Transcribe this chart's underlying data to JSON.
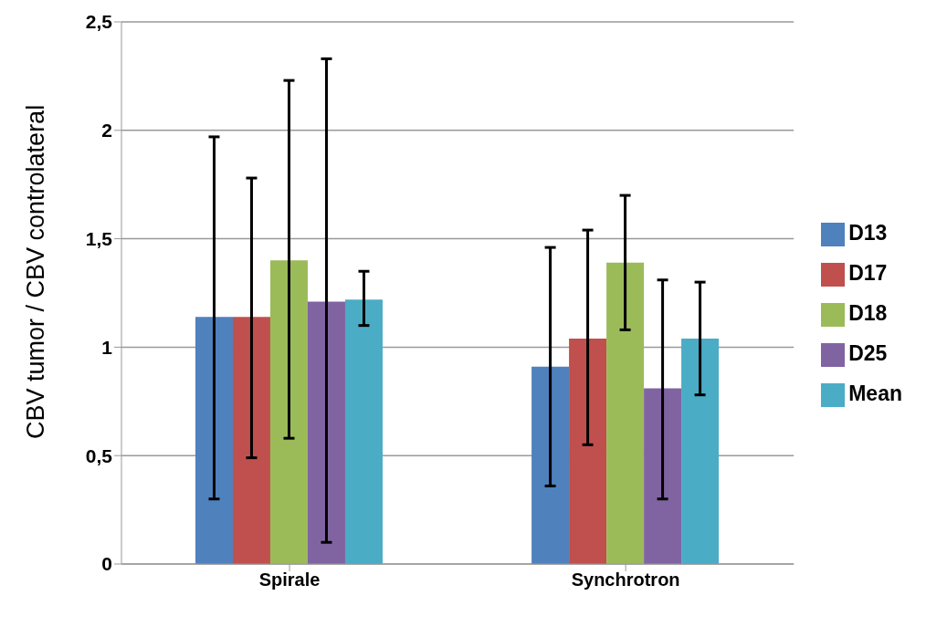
{
  "chart_data": {
    "type": "bar",
    "ylabel": "CBV tumor / CBV controlateral",
    "categories": [
      "Spirale",
      "Synchrotron"
    ],
    "series": [
      {
        "name": "D13",
        "color": "#4f81bd",
        "values": [
          1.14,
          0.91
        ],
        "errors": [
          [
            0.3,
            1.97
          ],
          [
            0.36,
            1.46
          ]
        ]
      },
      {
        "name": "D17",
        "color": "#c0504d",
        "values": [
          1.14,
          1.04
        ],
        "errors": [
          [
            0.49,
            1.78
          ],
          [
            0.55,
            1.54
          ]
        ]
      },
      {
        "name": "D18",
        "color": "#9bbb59",
        "values": [
          1.4,
          1.39
        ],
        "errors": [
          [
            0.58,
            2.23
          ],
          [
            1.08,
            1.7
          ]
        ]
      },
      {
        "name": "D25",
        "color": "#8064a2",
        "values": [
          1.21,
          0.81
        ],
        "errors": [
          [
            0.1,
            2.33
          ],
          [
            0.3,
            1.31
          ]
        ]
      },
      {
        "name": "Mean",
        "color": "#4bacc6",
        "values": [
          1.22,
          1.04
        ],
        "errors": [
          [
            1.1,
            1.35
          ],
          [
            0.78,
            1.3
          ]
        ]
      }
    ],
    "ylim": [
      0,
      2.5
    ],
    "yticks": [
      0,
      {
        "value": 0.5,
        "label": "0,5"
      },
      1,
      {
        "value": 1.5,
        "label": "1,5"
      },
      2,
      {
        "value": 2.5,
        "label": "2,5"
      }
    ],
    "grid": "y",
    "legend": "right"
  }
}
